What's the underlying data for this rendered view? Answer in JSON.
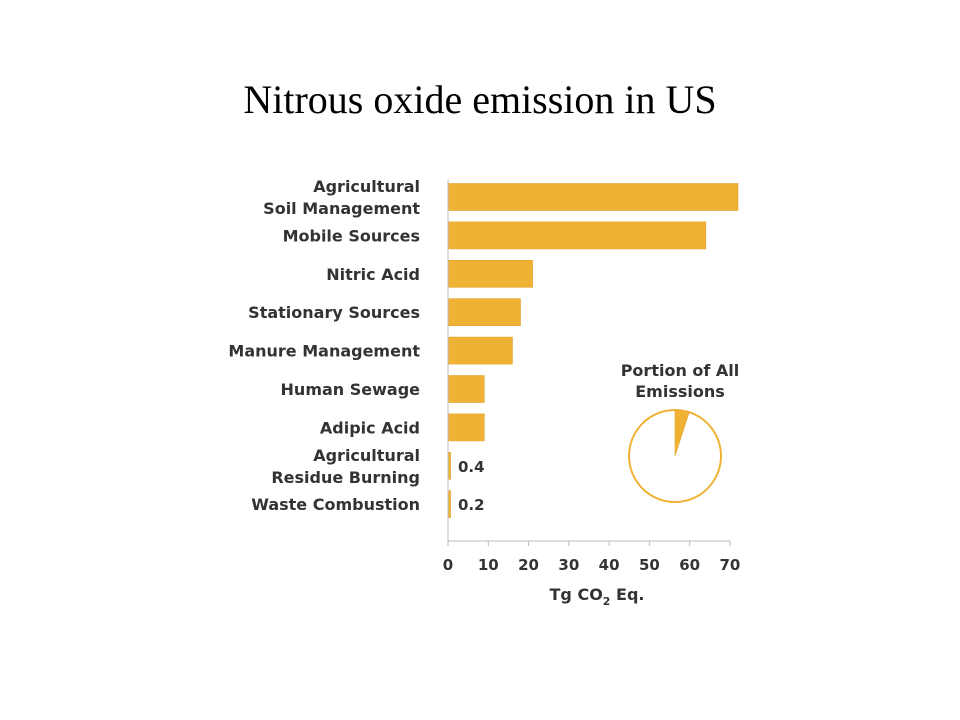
{
  "page": {
    "title": "Nitrous oxide emission in US"
  },
  "colors": {
    "bar": "#F0B234",
    "bar_edge": "#E3A22A",
    "text": "#333333",
    "axis": "#BBBBBB"
  },
  "chart_data": {
    "type": "bar",
    "orientation": "horizontal",
    "categories": [
      [
        "Agricultural",
        "Soil Management"
      ],
      [
        "Mobile Sources"
      ],
      [
        "Nitric Acid"
      ],
      [
        "Stationary Sources"
      ],
      [
        "Manure Management"
      ],
      [
        "Human Sewage"
      ],
      [
        "Adipic Acid"
      ],
      [
        "Agricultural",
        "Residue Burning"
      ],
      [
        "Waste Combustion"
      ]
    ],
    "values": [
      72,
      64,
      21,
      18,
      16,
      9,
      9,
      0.4,
      0.2
    ],
    "data_labels": [
      "",
      "",
      "",
      "",
      "",
      "",
      "",
      "0.4",
      "0.2"
    ],
    "xlim": [
      0,
      72
    ],
    "xticks": [
      0,
      10,
      20,
      30,
      40,
      50,
      60,
      70
    ],
    "xlabel_main": "Tg CO",
    "xlabel_sub": "2",
    "xlabel_suffix": " Eq.",
    "grid": false,
    "inset": {
      "type": "pie",
      "title": [
        "Portion of All",
        "Emissions"
      ],
      "highlight_fraction": 0.05
    }
  }
}
